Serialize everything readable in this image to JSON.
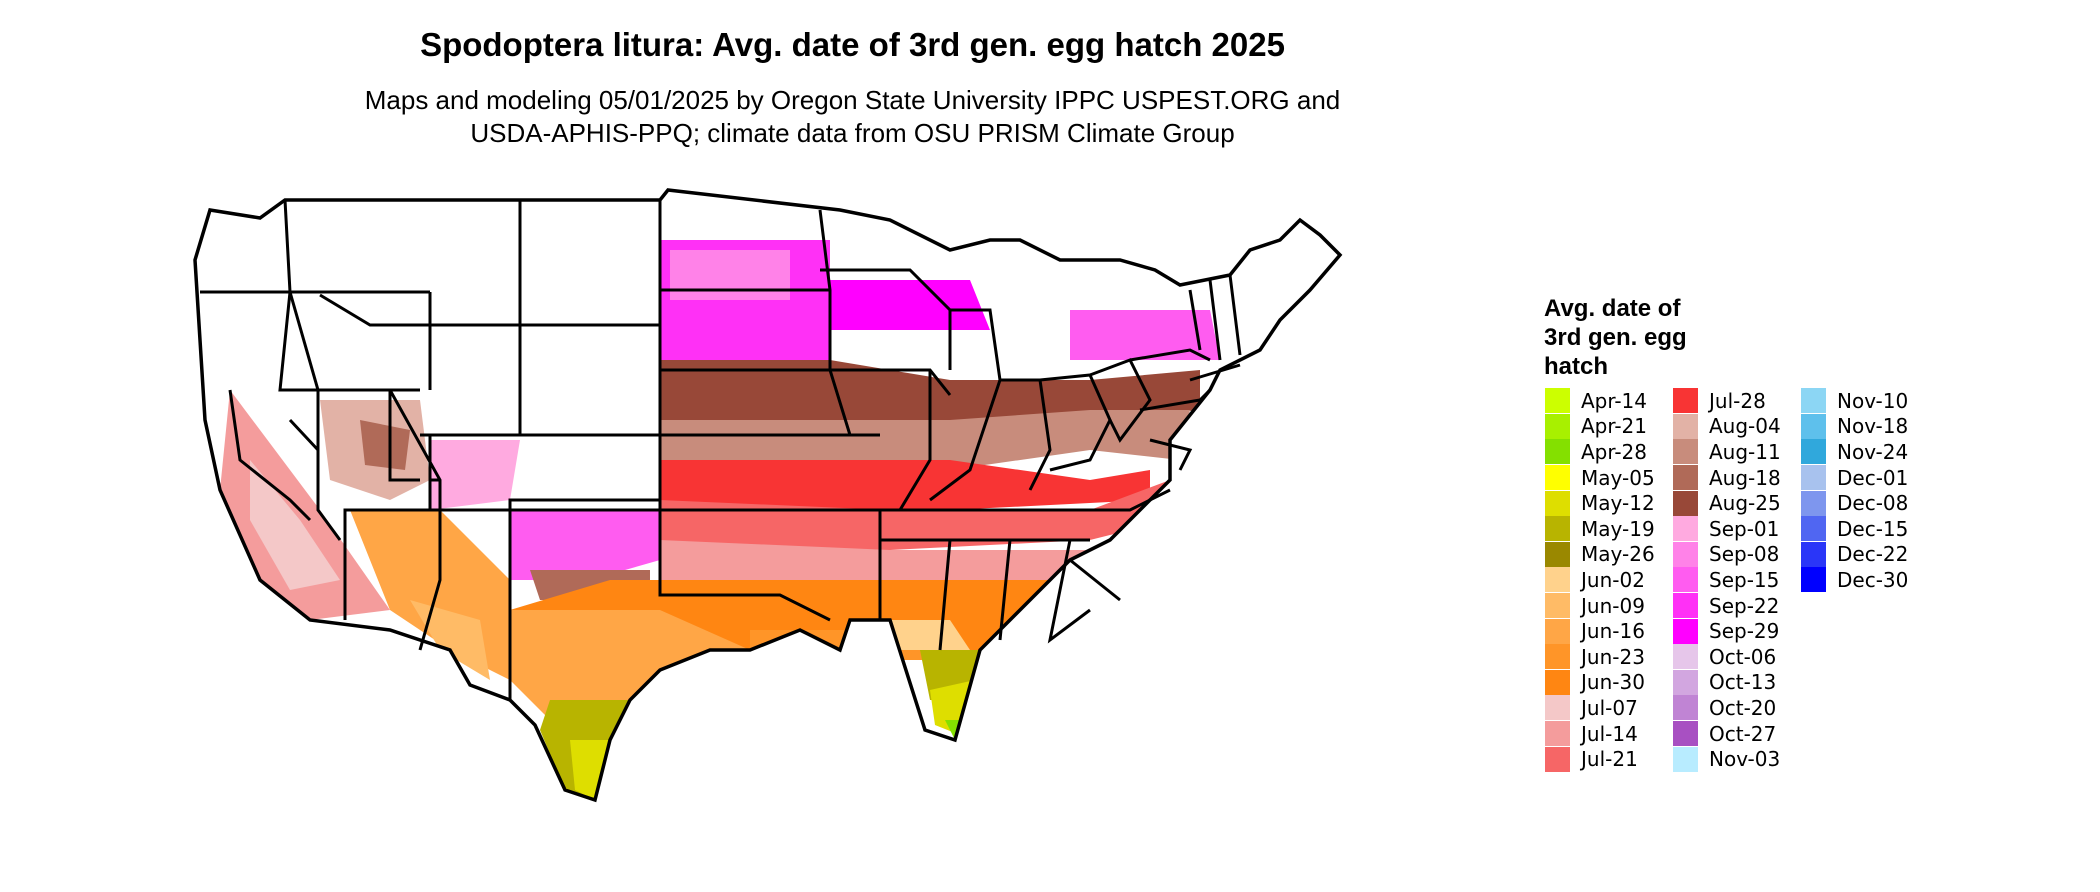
{
  "title": "Spodoptera litura: Avg. date of 3rd gen. egg hatch 2025",
  "subtitle_lines": [
    "Maps and modeling 05/01/2025 by Oregon State University IPPC USPEST.ORG and",
    "USDA-APHIS-PPQ; climate data from OSU PRISM Climate Group"
  ],
  "legend": {
    "title_lines": [
      "Avg. date of",
      "3rd gen. egg",
      "hatch"
    ],
    "columns": [
      [
        {
          "label": "Apr-14",
          "color": "#ccff00"
        },
        {
          "label": "Apr-21",
          "color": "#a8f000"
        },
        {
          "label": "Apr-28",
          "color": "#84e000"
        },
        {
          "label": "May-05",
          "color": "#ffff00"
        },
        {
          "label": "May-12",
          "color": "#dede00"
        },
        {
          "label": "May-19",
          "color": "#b8b400"
        },
        {
          "label": "May-26",
          "color": "#9a8800"
        },
        {
          "label": "Jun-02",
          "color": "#ffd28c"
        },
        {
          "label": "Jun-09",
          "color": "#ffbb66"
        },
        {
          "label": "Jun-16",
          "color": "#ffa646"
        },
        {
          "label": "Jun-23",
          "color": "#ff9528"
        },
        {
          "label": "Jun-30",
          "color": "#ff8612"
        },
        {
          "label": "Jul-07",
          "color": "#f4c8c8"
        },
        {
          "label": "Jul-14",
          "color": "#f49c9c"
        },
        {
          "label": "Jul-21",
          "color": "#f66666"
        }
      ],
      [
        {
          "label": "Jul-28",
          "color": "#f83434"
        },
        {
          "label": "Aug-04",
          "color": "#e2b2a6"
        },
        {
          "label": "Aug-11",
          "color": "#c88c7c"
        },
        {
          "label": "Aug-18",
          "color": "#b06a58"
        },
        {
          "label": "Aug-25",
          "color": "#984838"
        },
        {
          "label": "Sep-01",
          "color": "#ffaae0"
        },
        {
          "label": "Sep-08",
          "color": "#ff82e8"
        },
        {
          "label": "Sep-15",
          "color": "#ff5cf0"
        },
        {
          "label": "Sep-22",
          "color": "#ff30f6"
        },
        {
          "label": "Sep-29",
          "color": "#ff00ff"
        },
        {
          "label": "Oct-06",
          "color": "#e6c6ea"
        },
        {
          "label": "Oct-13",
          "color": "#d2a6e0"
        },
        {
          "label": "Oct-20",
          "color": "#c084d4"
        },
        {
          "label": "Oct-27",
          "color": "#a850c2"
        },
        {
          "label": "Nov-03",
          "color": "#b8ecff"
        }
      ],
      [
        {
          "label": "Nov-10",
          "color": "#8cd6f4"
        },
        {
          "label": "Nov-18",
          "color": "#5ec0ec"
        },
        {
          "label": "Nov-24",
          "color": "#30a8dc"
        },
        {
          "label": "Dec-01",
          "color": "#a8c2ee"
        },
        {
          "label": "Dec-08",
          "color": "#7e96ee"
        },
        {
          "label": "Dec-15",
          "color": "#5066f2"
        },
        {
          "label": "Dec-22",
          "color": "#2a36f8"
        },
        {
          "label": "Dec-30",
          "color": "#0000ff"
        }
      ]
    ]
  }
}
